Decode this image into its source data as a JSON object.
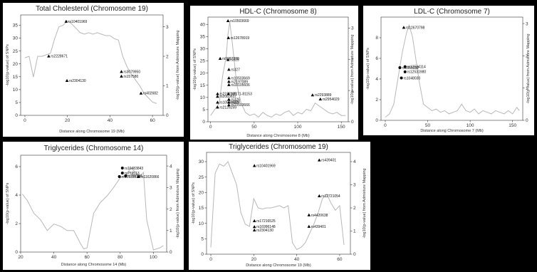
{
  "chart_data": [
    {
      "type": "scatter",
      "title": "Total Cholesterol (Chromosome 19)",
      "xlabel": "Distance along Chromosome 19 (Mb)",
      "ylabel": "-log10(p-value) of SNPs",
      "y2label": "-log10(p-value) from Admixture Mapping",
      "xlim": [
        -2,
        65
      ],
      "ylim": [
        0,
        39
      ],
      "y2lim": [
        0,
        3.4
      ],
      "xticks": [
        0,
        20,
        40,
        60
      ],
      "yticks": [
        0,
        5,
        10,
        15,
        20,
        25,
        30,
        35
      ],
      "y2ticks": [
        0,
        1,
        2,
        3
      ],
      "curve_x": [
        0,
        2,
        4,
        6,
        8,
        10,
        12,
        14,
        16,
        18,
        20,
        22,
        24,
        26,
        28,
        30,
        32,
        34,
        36,
        38,
        40,
        42,
        44,
        46,
        48,
        50,
        52,
        54,
        56,
        58,
        60,
        62
      ],
      "curve_y2": [
        1.95,
        2.0,
        1.3,
        2.0,
        2.0,
        2.05,
        2.1,
        2.6,
        3.0,
        3.05,
        3.2,
        3.1,
        2.95,
        2.8,
        2.75,
        2.8,
        2.75,
        2.8,
        2.75,
        2.7,
        2.7,
        2.6,
        2.55,
        2.0,
        1.65,
        1.4,
        1.2,
        1.0,
        0.75,
        0.6,
        0.45,
        0.4
      ],
      "points": [
        {
          "label": "rs10401969",
          "x": 19.4,
          "y": 36.5,
          "marker": "triangle"
        },
        {
          "label": "rs2228671",
          "x": 11.2,
          "y": 23.0,
          "marker": "triangle"
        },
        {
          "label": "rs2304130",
          "x": 19.8,
          "y": 13.5,
          "marker": "triangle"
        },
        {
          "label": "rs3079950",
          "x": 45.4,
          "y": 17.0,
          "marker": "triangle"
        },
        {
          "label": "rs157580",
          "x": 45.4,
          "y": 15.2,
          "marker": "triangle"
        },
        {
          "label": "rs402682",
          "x": 54.6,
          "y": 8.6,
          "marker": "triangle"
        }
      ]
    },
    {
      "type": "scatter",
      "title": "HDL-C (Chromosome 8)",
      "xlabel": "Distance along Chromosome 8 (Mb)",
      "ylabel": "-log10(p-value) of SNPs",
      "y2label": "-log10(p-value) from Admixture Mapping",
      "xlim": [
        -3,
        158
      ],
      "ylim": [
        0,
        43
      ],
      "y2lim": [
        0,
        3.35
      ],
      "xticks": [
        0,
        50,
        100,
        150
      ],
      "yticks": [
        0,
        5,
        10,
        15,
        20,
        25,
        30,
        35,
        40
      ],
      "y2ticks": [
        0,
        1,
        2,
        3
      ],
      "curve_x": [
        0,
        5,
        10,
        14,
        18,
        20,
        22,
        25,
        30,
        35,
        40,
        45,
        50,
        55,
        60,
        65,
        70,
        75,
        80,
        85,
        90,
        95,
        100,
        105,
        110,
        115,
        120,
        125,
        130,
        135,
        140,
        145,
        150,
        155
      ],
      "curve_y2": [
        0.2,
        0.4,
        0.6,
        1.5,
        2.1,
        2.8,
        3.2,
        2.5,
        1.2,
        0.6,
        0.3,
        0.2,
        0.25,
        0.15,
        0.3,
        0.2,
        0.15,
        0.25,
        0.2,
        0.3,
        0.35,
        0.2,
        0.3,
        0.25,
        0.4,
        0.35,
        0.6,
        0.5,
        0.4,
        0.3,
        0.25,
        0.3,
        0.2,
        0.2
      ],
      "points": [
        {
          "label": "rs10503669",
          "x": 20,
          "y": 41.5,
          "marker": "triangle"
        },
        {
          "label": "rs12678919",
          "x": 20.5,
          "y": 34.5,
          "marker": "triangle"
        },
        {
          "label": "rs9987289",
          "x": 11,
          "y": 26.0,
          "marker": "triangle"
        },
        {
          "label": "rs325",
          "x": 20,
          "y": 25.5,
          "marker": "triangle"
        },
        {
          "label": "rs327",
          "x": 21,
          "y": 21.5,
          "marker": "triangle"
        },
        {
          "label": "rs10503669",
          "x": 21,
          "y": 18.0,
          "marker": "triangle"
        },
        {
          "label": "rs2197089",
          "x": 21,
          "y": 16.5,
          "marker": "triangle"
        },
        {
          "label": "rs10105606",
          "x": 21,
          "y": 15.2,
          "marker": "triangle"
        },
        {
          "label": "rs1171-81153",
          "x": 20.5,
          "y": 11.5,
          "marker": "triangle"
        },
        {
          "label": "rs326",
          "x": 21,
          "y": 9.2,
          "marker": "triangle"
        },
        {
          "label": "rs328",
          "x": 21,
          "y": 8.0,
          "marker": "triangle"
        },
        {
          "label": "rs10503666",
          "x": 21,
          "y": 6.9,
          "marker": "triangle"
        },
        {
          "label": "rs2197089",
          "x": 8,
          "y": 11.5,
          "marker": "triangle"
        },
        {
          "label": "rs2083637",
          "x": 8,
          "y": 10.4,
          "marker": "triangle"
        },
        {
          "label": "rs10503669",
          "x": 8,
          "y": 8.0,
          "marker": "triangle"
        },
        {
          "label": "rs2126259",
          "x": 8,
          "y": 6.0,
          "marker": "triangle"
        },
        {
          "label": "rs2293889",
          "x": 117,
          "y": 11.0,
          "marker": "triangle"
        },
        {
          "label": "rs2954029",
          "x": 126,
          "y": 9.3,
          "marker": "triangle"
        }
      ]
    },
    {
      "type": "scatter",
      "title": "LDL-C (Chromosome 7)",
      "xlabel": "Distance along Chromosome 7 (Mb)",
      "ylabel": "-log10(p-value) of SNPs",
      "y2label": "-log10(p-value) from Admixture Mapping",
      "xlim": [
        -5,
        162
      ],
      "ylim": [
        0,
        10
      ],
      "y2lim": [
        0,
        3.2
      ],
      "xticks": [
        0,
        50,
        100,
        150
      ],
      "yticks": [
        0,
        2,
        4,
        6,
        8
      ],
      "y2ticks": [
        0,
        1,
        2,
        3
      ],
      "curve_x": [
        0,
        5,
        10,
        15,
        20,
        25,
        28,
        32,
        36,
        40,
        45,
        50,
        55,
        60,
        65,
        70,
        75,
        80,
        85,
        90,
        95,
        100,
        105,
        110,
        115,
        120,
        125,
        130,
        135,
        140,
        145,
        150,
        155,
        158
      ],
      "curve_y2": [
        0.1,
        0.2,
        0.5,
        1.3,
        2.1,
        2.7,
        2.95,
        2.6,
        1.9,
        1.2,
        0.5,
        0.4,
        0.3,
        0.35,
        0.25,
        0.3,
        0.2,
        0.25,
        0.3,
        0.5,
        0.3,
        0.25,
        0.35,
        0.2,
        0.3,
        0.25,
        0.2,
        0.3,
        0.25,
        0.2,
        0.3,
        0.2,
        0.4,
        0.3
      ],
      "points": [
        {
          "label": "rs12670798",
          "x": 21.8,
          "y": 9.0,
          "marker": "triangle"
        },
        {
          "label": "rs6955932",
          "x": 17.2,
          "y": 5.1,
          "marker": "dot"
        },
        {
          "label": "rs12534114",
          "x": 23.3,
          "y": 5.2,
          "marker": "dot"
        },
        {
          "label": "rs12531980",
          "x": 23.3,
          "y": 4.7,
          "marker": "dot"
        },
        {
          "label": "rs1048030",
          "x": 19.0,
          "y": 4.1,
          "marker": "dot"
        }
      ]
    },
    {
      "type": "scatter",
      "title": "Triglycerides (Chromosome 14)",
      "xlabel": "Distance along Chromosome 14 (Mb)",
      "ylabel": "-log10(p-value) of SNPs",
      "y2label": "-log10(p-value) from Admixture Mapping",
      "xlim": [
        20,
        108
      ],
      "ylim": [
        0,
        6.8
      ],
      "y2lim": [
        0,
        4.5
      ],
      "xticks": [
        20,
        40,
        60,
        80,
        100
      ],
      "yticks": [
        0,
        2,
        4,
        6
      ],
      "y2ticks": [
        0,
        1,
        2,
        3,
        4
      ],
      "curve_x": [
        21,
        24,
        28,
        32,
        36,
        40,
        44,
        48,
        52,
        56,
        58,
        60,
        62,
        64,
        68,
        72,
        76,
        80,
        84,
        86,
        88,
        90,
        92,
        94,
        96,
        98,
        100,
        104,
        106
      ],
      "curve_y2": [
        2.7,
        2.4,
        1.8,
        1.5,
        1.0,
        1.3,
        1.2,
        1.0,
        1.0,
        0.4,
        0.15,
        0.2,
        1.0,
        1.8,
        2.3,
        2.6,
        3.0,
        3.45,
        3.6,
        3.9,
        3.8,
        3.65,
        3.55,
        3.7,
        1.5,
        0.8,
        0.1,
        0.2,
        0.3
      ],
      "points": [
        {
          "label": "rs10483843",
          "x": 81.3,
          "y": 5.9,
          "marker": "dot"
        },
        {
          "label": "rs759513",
          "x": 81.3,
          "y": 5.55,
          "marker": "dot"
        },
        {
          "label": "rs10135539",
          "x": 79.5,
          "y": 5.3,
          "marker": "dot"
        },
        {
          "label": "rs737845",
          "x": 83.3,
          "y": 5.35,
          "marker": "dot"
        },
        {
          "label": "rs11620866",
          "x": 91.0,
          "y": 5.3,
          "marker": "triangle"
        }
      ]
    },
    {
      "type": "scatter",
      "title": "Triglycerides (Chromosome 19)",
      "xlabel": "Distance along Chromosome 19 (Mb)",
      "ylabel": "-log10(p-value) of SNPs",
      "y2label": "-log10(p-value) from Admixture Mapping",
      "xlim": [
        -2,
        65
      ],
      "ylim": [
        0,
        33
      ],
      "y2lim": [
        0,
        4.4
      ],
      "xticks": [
        0,
        20,
        40,
        60
      ],
      "yticks": [
        0,
        5,
        10,
        15,
        20,
        25,
        30
      ],
      "y2ticks": [
        0,
        1,
        2,
        3,
        4
      ],
      "curve_x": [
        0,
        2,
        4,
        6,
        8,
        10,
        12,
        14,
        16,
        18,
        20,
        22,
        24,
        26,
        28,
        30,
        32,
        34,
        36,
        38,
        40,
        42,
        44,
        46,
        48,
        50,
        52,
        54,
        56,
        58,
        60,
        62
      ],
      "curve_y2": [
        0.3,
        3.5,
        3.9,
        3.8,
        4.0,
        3.5,
        3.0,
        1.8,
        1.3,
        1.2,
        2.4,
        2.0,
        1.95,
        2.0,
        2.0,
        2.05,
        2.1,
        2.0,
        2.1,
        0.5,
        0.2,
        0.3,
        0.5,
        0.9,
        1.3,
        1.8,
        2.4,
        2.6,
        2.2,
        1.9,
        2.1,
        0.4
      ],
      "points": [
        {
          "label": "rs10401969",
          "x": 20.3,
          "y": 28.7,
          "marker": "triangle"
        },
        {
          "label": "rs439401",
          "x": 50.5,
          "y": 30.5,
          "marker": "triangle"
        },
        {
          "label": "rs12721054",
          "x": 50.5,
          "y": 18.9,
          "marker": "triangle"
        },
        {
          "label": "rs4420638",
          "x": 45.7,
          "y": 12.7,
          "marker": "triangle"
        },
        {
          "label": "rs439401",
          "x": 45.7,
          "y": 9.0,
          "marker": "triangle"
        },
        {
          "label": "rs17216525",
          "x": 20.3,
          "y": 10.8,
          "marker": "triangle"
        },
        {
          "label": "rs16996148",
          "x": 20.3,
          "y": 8.9,
          "marker": "triangle"
        },
        {
          "label": "rs2304130",
          "x": 20.3,
          "y": 7.8,
          "marker": "triangle"
        }
      ]
    }
  ]
}
